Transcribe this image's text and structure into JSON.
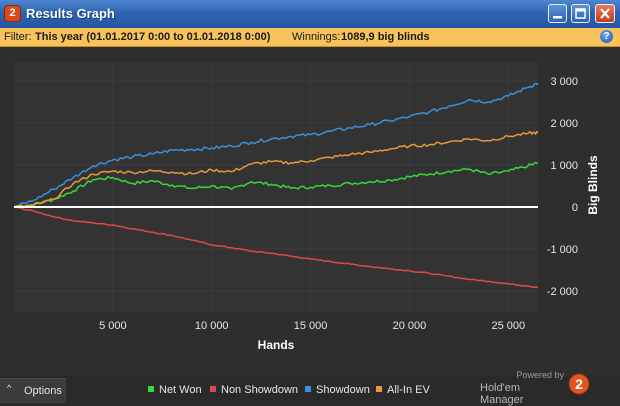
{
  "window": {
    "title": "Results Graph",
    "app_icon_label": "2"
  },
  "filter": {
    "prefix": "Filter:",
    "value": "This year (01.01.2017 0:00 to 01.01.2018 0:00)",
    "winnings_label": "Winnings:",
    "winnings_value": "1089,9 big blinds",
    "help_icon": "?"
  },
  "colors": {
    "net_won": "#36d936",
    "non_showdown": "#e04848",
    "showdown": "#3a8fd8",
    "all_in_ev": "#e8963a",
    "zero_line": "#ffffff",
    "grid": "#3c3c3c"
  },
  "chart_data": {
    "type": "line",
    "xlabel": "Hands",
    "ylabel": "Big Blinds",
    "x_ticks": [
      5000,
      10000,
      15000,
      20000,
      25000
    ],
    "x_tick_labels": [
      "5 000",
      "10 000",
      "15 000",
      "20 000",
      "25 000"
    ],
    "y_ticks": [
      3000,
      2000,
      1000,
      0,
      -1000,
      -2000
    ],
    "y_tick_labels": [
      "3 000",
      "2 000",
      "1 000",
      "0",
      "-1 000",
      "-2 000"
    ],
    "xlim": [
      0,
      26500
    ],
    "ylim": [
      -2500,
      3450
    ],
    "grid": true,
    "x": [
      0,
      1000,
      2000,
      3000,
      4000,
      5000,
      6000,
      7000,
      8000,
      9000,
      10000,
      11000,
      12000,
      13000,
      14000,
      15000,
      16000,
      17000,
      18000,
      19000,
      20000,
      21000,
      22000,
      23000,
      24000,
      25000,
      26000,
      26500
    ],
    "series": [
      {
        "name": "Net Won",
        "color_key": "net_won",
        "values": [
          0,
          60,
          180,
          380,
          650,
          700,
          560,
          620,
          520,
          440,
          500,
          420,
          600,
          540,
          450,
          470,
          510,
          560,
          600,
          640,
          720,
          780,
          850,
          900,
          780,
          850,
          980,
          1050
        ]
      },
      {
        "name": "Non Showdown",
        "color_key": "non_showdown",
        "values": [
          0,
          -100,
          -230,
          -330,
          -380,
          -430,
          -520,
          -600,
          -680,
          -790,
          -900,
          -970,
          -1050,
          -1100,
          -1170,
          -1240,
          -1300,
          -1360,
          -1420,
          -1470,
          -1520,
          -1580,
          -1650,
          -1720,
          -1770,
          -1830,
          -1880,
          -1920
        ]
      },
      {
        "name": "Showdown",
        "color_key": "showdown",
        "values": [
          0,
          160,
          420,
          700,
          980,
          1120,
          1190,
          1260,
          1350,
          1370,
          1400,
          1450,
          1540,
          1620,
          1680,
          1720,
          1800,
          1880,
          1960,
          2050,
          2150,
          2260,
          2400,
          2550,
          2500,
          2640,
          2850,
          2950
        ]
      },
      {
        "name": "All-In EV",
        "color_key": "all_in_ev",
        "values": [
          0,
          40,
          180,
          560,
          780,
          850,
          820,
          860,
          830,
          790,
          880,
          840,
          1020,
          1080,
          1050,
          1100,
          1180,
          1250,
          1300,
          1380,
          1450,
          1480,
          1550,
          1620,
          1580,
          1680,
          1750,
          1770
        ]
      }
    ]
  },
  "bottom": {
    "options_caret": "^",
    "options_label": "Options",
    "legend": [
      {
        "label": "Net Won",
        "color_key": "net_won"
      },
      {
        "label": "Non Showdown",
        "color_key": "non_showdown"
      },
      {
        "label": "Showdown",
        "color_key": "showdown"
      },
      {
        "label": "All-In EV",
        "color_key": "all_in_ev"
      }
    ],
    "brand_powered": "Powered by",
    "brand_name": "Hold'em Manager",
    "brand_logo_digit": "2"
  },
  "icons": {
    "app": "hm2-app-icon",
    "minimize": "minimize-icon",
    "maximize": "maximize-icon",
    "close": "close-icon",
    "help": "help-icon"
  }
}
